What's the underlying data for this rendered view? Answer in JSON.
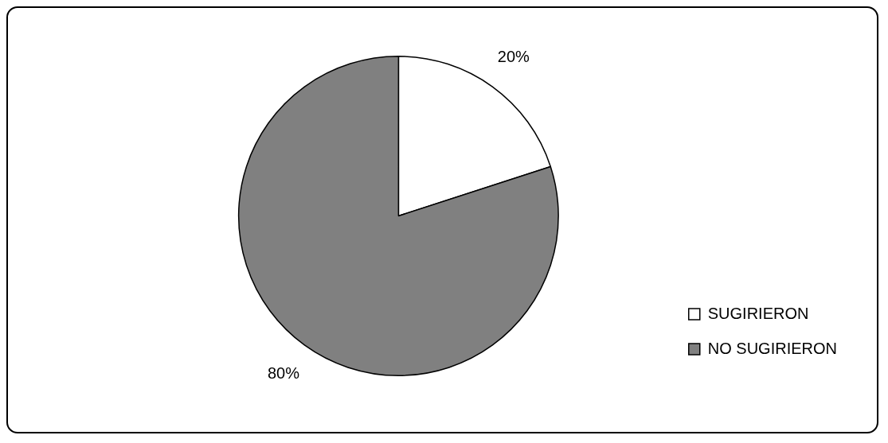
{
  "chart_data": {
    "type": "pie",
    "categories": [
      "SUGIRIERON",
      "NO SUGIRIERON"
    ],
    "values": [
      20,
      80
    ],
    "colors": [
      "#ffffff",
      "#808080"
    ],
    "value_labels": [
      "20%",
      "80%"
    ],
    "legend": "bottom right"
  }
}
